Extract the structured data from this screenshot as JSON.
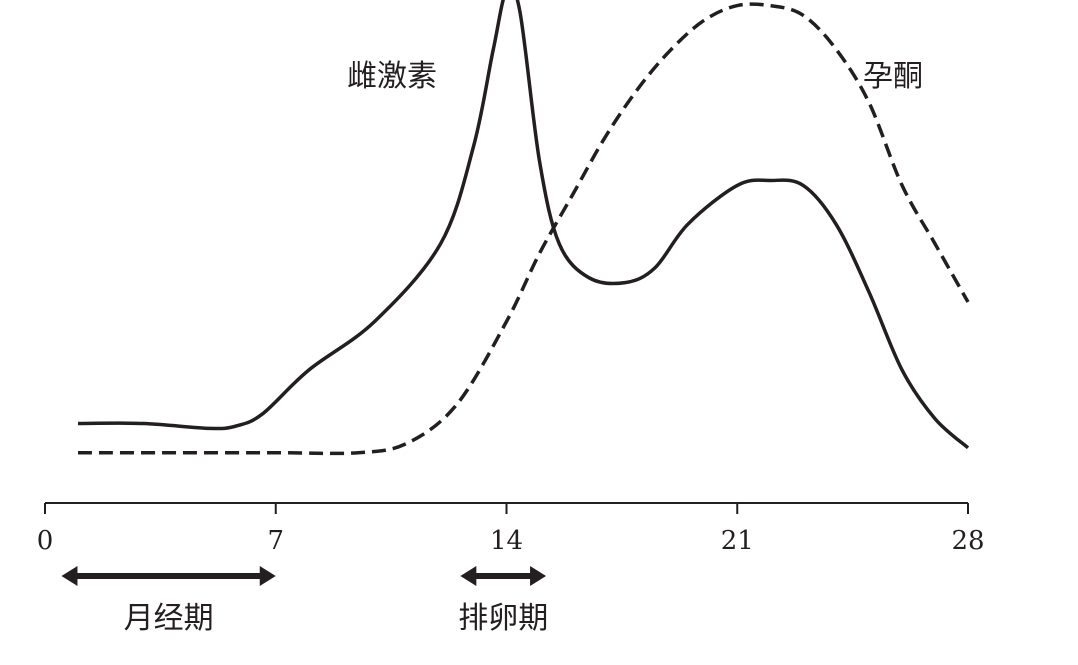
{
  "chart_data": {
    "type": "line",
    "title": "",
    "xlabel": "",
    "ylabel": "",
    "xlim": [
      0,
      28
    ],
    "ylim": [
      0,
      100
    ],
    "x_ticks": [
      "0",
      "7",
      "14",
      "21",
      "28"
    ],
    "grid": false,
    "legend": "none",
    "series": [
      {
        "name": "雌激素",
        "style": "solid",
        "color": "#231f20",
        "x": [
          1,
          3,
          5,
          5.8,
          6.6,
          8,
          10,
          12,
          13,
          13.6,
          14,
          14.4,
          15,
          15.6,
          16.5,
          17.6,
          18.5,
          19.5,
          21,
          22,
          23,
          24,
          25,
          26,
          27,
          28
        ],
        "y": [
          11,
          11,
          10,
          10.5,
          13,
          22,
          32,
          48,
          68,
          88,
          100,
          96,
          65,
          48,
          41,
          40,
          43,
          52,
          60,
          61,
          60,
          52,
          38,
          22,
          12,
          6
        ]
      },
      {
        "name": "孕酮",
        "style": "dashed",
        "color": "#231f20",
        "x": [
          1,
          4,
          7,
          9.5,
          11,
          12.5,
          14,
          15,
          16,
          17,
          18,
          19,
          20,
          21,
          22,
          23,
          24,
          25,
          26,
          27,
          28
        ],
        "y": [
          5,
          5,
          5,
          5,
          7,
          15,
          32,
          46,
          58,
          70,
          80,
          88,
          94,
          97,
          97,
          95,
          88,
          77,
          60,
          48,
          36
        ]
      }
    ],
    "annotations": [
      {
        "label": "月经期",
        "x_start": 0.5,
        "x_end": 7
      },
      {
        "label": "排卵期",
        "x_start": 12.6,
        "x_end": 15.2
      }
    ]
  }
}
